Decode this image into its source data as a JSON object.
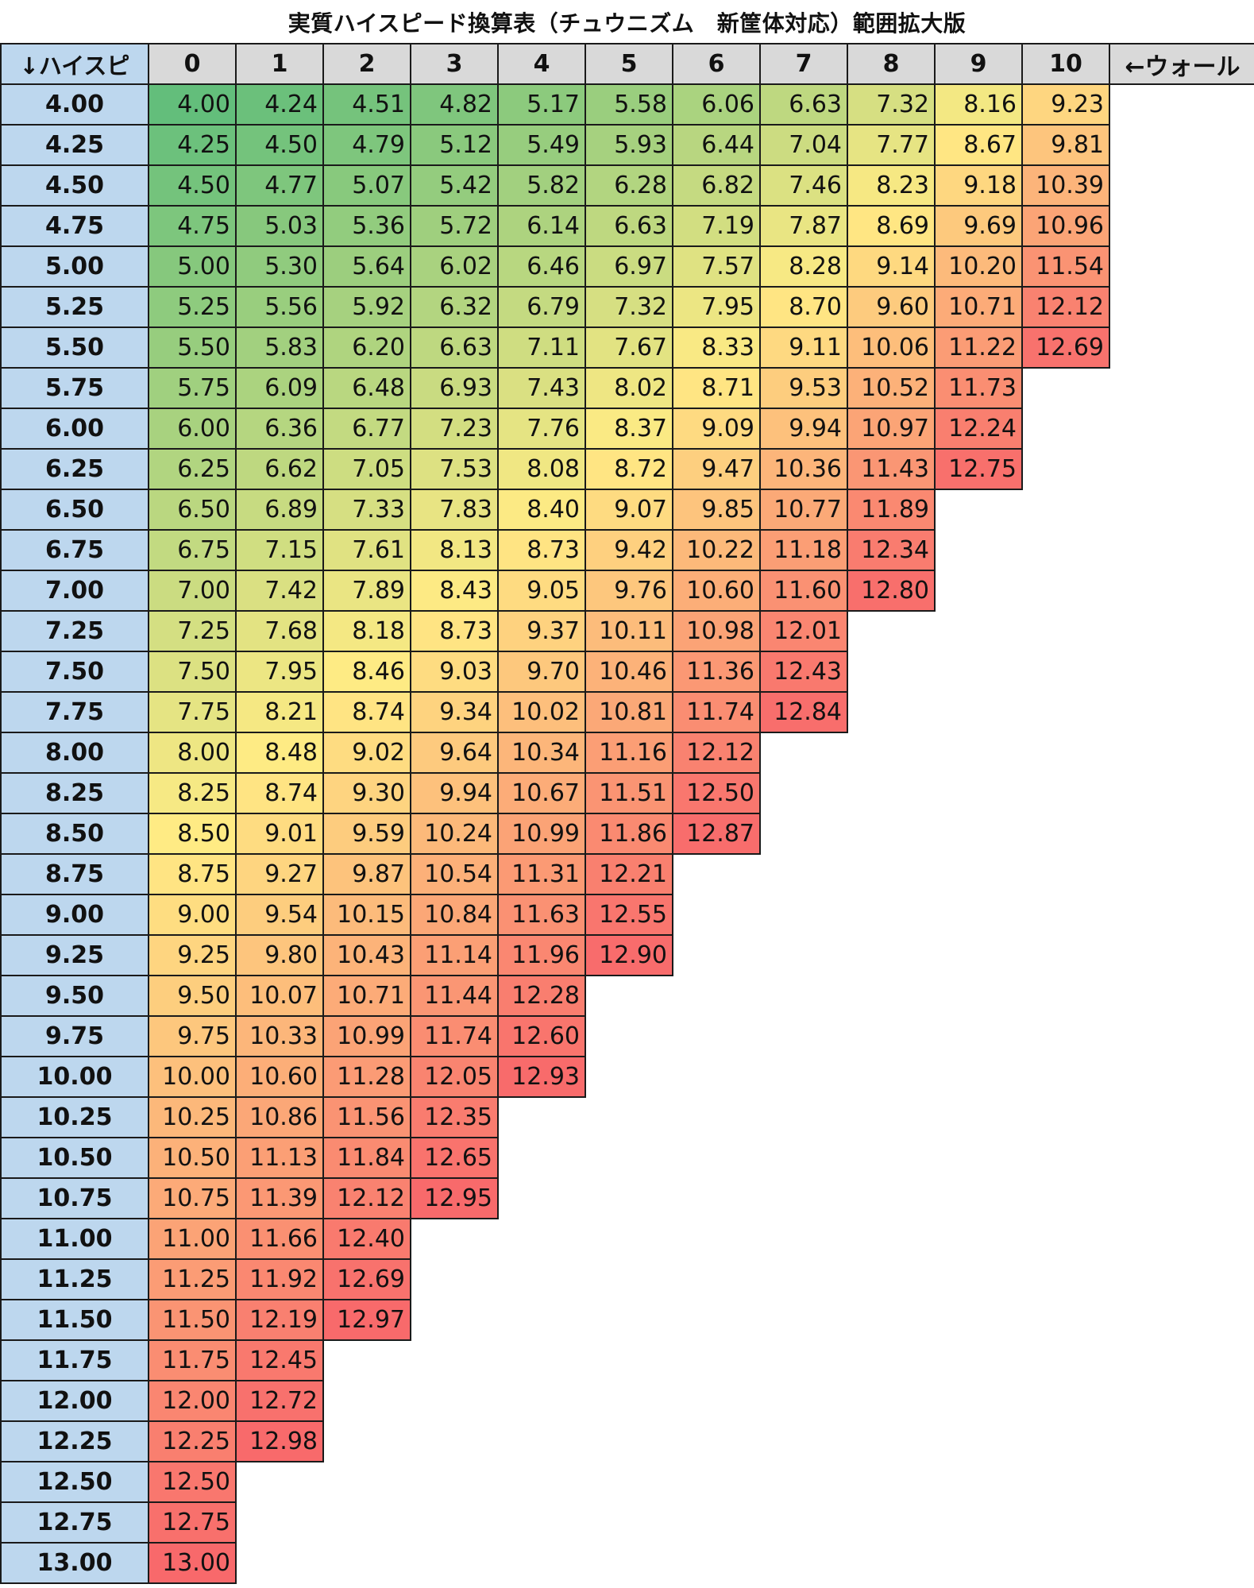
{
  "title": "実質ハイスピード換算表（チュウニズム　新筐体対応）範囲拡大版",
  "corner_label": "↓ハイスピ",
  "wall_label": "←ウォール",
  "columns": [
    "0",
    "1",
    "2",
    "3",
    "4",
    "5",
    "6",
    "7",
    "8",
    "9",
    "10"
  ],
  "rows": [
    {
      "speed": "4.00",
      "values": [
        "4.00",
        "4.24",
        "4.51",
        "4.82",
        "5.17",
        "5.58",
        "6.06",
        "6.63",
        "7.32",
        "8.16",
        "9.23"
      ]
    },
    {
      "speed": "4.25",
      "values": [
        "4.25",
        "4.50",
        "4.79",
        "5.12",
        "5.49",
        "5.93",
        "6.44",
        "7.04",
        "7.77",
        "8.67",
        "9.81"
      ]
    },
    {
      "speed": "4.50",
      "values": [
        "4.50",
        "4.77",
        "5.07",
        "5.42",
        "5.82",
        "6.28",
        "6.82",
        "7.46",
        "8.23",
        "9.18",
        "10.39"
      ]
    },
    {
      "speed": "4.75",
      "values": [
        "4.75",
        "5.03",
        "5.36",
        "5.72",
        "6.14",
        "6.63",
        "7.19",
        "7.87",
        "8.69",
        "9.69",
        "10.96"
      ]
    },
    {
      "speed": "5.00",
      "values": [
        "5.00",
        "5.30",
        "5.64",
        "6.02",
        "6.46",
        "6.97",
        "7.57",
        "8.28",
        "9.14",
        "10.20",
        "11.54"
      ]
    },
    {
      "speed": "5.25",
      "values": [
        "5.25",
        "5.56",
        "5.92",
        "6.32",
        "6.79",
        "7.32",
        "7.95",
        "8.70",
        "9.60",
        "10.71",
        "12.12"
      ]
    },
    {
      "speed": "5.50",
      "values": [
        "5.50",
        "5.83",
        "6.20",
        "6.63",
        "7.11",
        "7.67",
        "8.33",
        "9.11",
        "10.06",
        "11.22",
        "12.69"
      ]
    },
    {
      "speed": "5.75",
      "values": [
        "5.75",
        "6.09",
        "6.48",
        "6.93",
        "7.43",
        "8.02",
        "8.71",
        "9.53",
        "10.52",
        "11.73"
      ]
    },
    {
      "speed": "6.00",
      "values": [
        "6.00",
        "6.36",
        "6.77",
        "7.23",
        "7.76",
        "8.37",
        "9.09",
        "9.94",
        "10.97",
        "12.24"
      ]
    },
    {
      "speed": "6.25",
      "values": [
        "6.25",
        "6.62",
        "7.05",
        "7.53",
        "8.08",
        "8.72",
        "9.47",
        "10.36",
        "11.43",
        "12.75"
      ]
    },
    {
      "speed": "6.50",
      "values": [
        "6.50",
        "6.89",
        "7.33",
        "7.83",
        "8.40",
        "9.07",
        "9.85",
        "10.77",
        "11.89"
      ]
    },
    {
      "speed": "6.75",
      "values": [
        "6.75",
        "7.15",
        "7.61",
        "8.13",
        "8.73",
        "9.42",
        "10.22",
        "11.18",
        "12.34"
      ]
    },
    {
      "speed": "7.00",
      "values": [
        "7.00",
        "7.42",
        "7.89",
        "8.43",
        "9.05",
        "9.76",
        "10.60",
        "11.60",
        "12.80"
      ]
    },
    {
      "speed": "7.25",
      "values": [
        "7.25",
        "7.68",
        "8.18",
        "8.73",
        "9.37",
        "10.11",
        "10.98",
        "12.01"
      ]
    },
    {
      "speed": "7.50",
      "values": [
        "7.50",
        "7.95",
        "8.46",
        "9.03",
        "9.70",
        "10.46",
        "11.36",
        "12.43"
      ]
    },
    {
      "speed": "7.75",
      "values": [
        "7.75",
        "8.21",
        "8.74",
        "9.34",
        "10.02",
        "10.81",
        "11.74",
        "12.84"
      ]
    },
    {
      "speed": "8.00",
      "values": [
        "8.00",
        "8.48",
        "9.02",
        "9.64",
        "10.34",
        "11.16",
        "12.12"
      ]
    },
    {
      "speed": "8.25",
      "values": [
        "8.25",
        "8.74",
        "9.30",
        "9.94",
        "10.67",
        "11.51",
        "12.50"
      ]
    },
    {
      "speed": "8.50",
      "values": [
        "8.50",
        "9.01",
        "9.59",
        "10.24",
        "10.99",
        "11.86",
        "12.87"
      ]
    },
    {
      "speed": "8.75",
      "values": [
        "8.75",
        "9.27",
        "9.87",
        "10.54",
        "11.31",
        "12.21"
      ]
    },
    {
      "speed": "9.00",
      "values": [
        "9.00",
        "9.54",
        "10.15",
        "10.84",
        "11.63",
        "12.55"
      ]
    },
    {
      "speed": "9.25",
      "values": [
        "9.25",
        "9.80",
        "10.43",
        "11.14",
        "11.96",
        "12.90"
      ]
    },
    {
      "speed": "9.50",
      "values": [
        "9.50",
        "10.07",
        "10.71",
        "11.44",
        "12.28"
      ]
    },
    {
      "speed": "9.75",
      "values": [
        "9.75",
        "10.33",
        "10.99",
        "11.74",
        "12.60"
      ]
    },
    {
      "speed": "10.00",
      "values": [
        "10.00",
        "10.60",
        "11.28",
        "12.05",
        "12.93"
      ]
    },
    {
      "speed": "10.25",
      "values": [
        "10.25",
        "10.86",
        "11.56",
        "12.35"
      ]
    },
    {
      "speed": "10.50",
      "values": [
        "10.50",
        "11.13",
        "11.84",
        "12.65"
      ]
    },
    {
      "speed": "10.75",
      "values": [
        "10.75",
        "11.39",
        "12.12",
        "12.95"
      ]
    },
    {
      "speed": "11.00",
      "values": [
        "11.00",
        "11.66",
        "12.40"
      ]
    },
    {
      "speed": "11.25",
      "values": [
        "11.25",
        "11.92",
        "12.69"
      ]
    },
    {
      "speed": "11.50",
      "values": [
        "11.50",
        "12.19",
        "12.97"
      ]
    },
    {
      "speed": "11.75",
      "values": [
        "11.75",
        "12.45"
      ]
    },
    {
      "speed": "12.00",
      "values": [
        "12.00",
        "12.72"
      ]
    },
    {
      "speed": "12.25",
      "values": [
        "12.25",
        "12.98"
      ]
    },
    {
      "speed": "12.50",
      "values": [
        "12.50"
      ]
    },
    {
      "speed": "12.75",
      "values": [
        "12.75"
      ]
    },
    {
      "speed": "13.00",
      "values": [
        "13.00"
      ]
    }
  ],
  "colors": {
    "header_bg": "#d9d9d9",
    "row_header_bg": "#bdd7ee",
    "scale_low": "#63be7b",
    "scale_mid": "#ffeb84",
    "scale_high": "#f8696b"
  }
}
